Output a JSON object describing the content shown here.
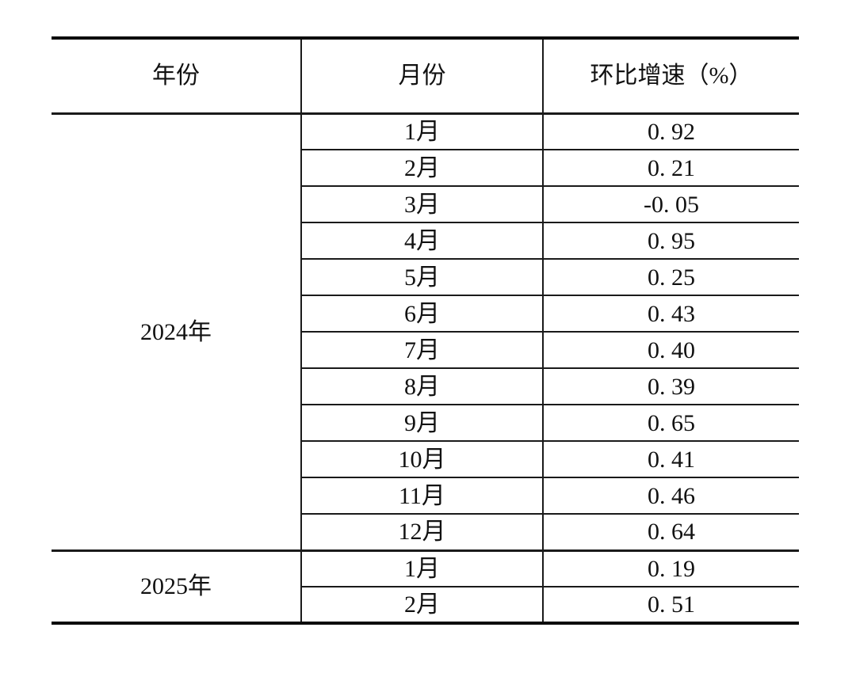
{
  "table": {
    "headers": {
      "year": "年份",
      "month": "月份",
      "rate": "环比增速（%）"
    },
    "groups": [
      {
        "year_label": "2024年",
        "rows": [
          {
            "month": "1月",
            "rate": "0. 92"
          },
          {
            "month": "2月",
            "rate": "0. 21"
          },
          {
            "month": "3月",
            "rate": "-0. 05"
          },
          {
            "month": "4月",
            "rate": "0. 95"
          },
          {
            "month": "5月",
            "rate": "0. 25"
          },
          {
            "month": "6月",
            "rate": "0. 43"
          },
          {
            "month": "7月",
            "rate": "0. 40"
          },
          {
            "month": "8月",
            "rate": "0. 39"
          },
          {
            "month": "9月",
            "rate": "0. 65"
          },
          {
            "month": "10月",
            "rate": "0. 41"
          },
          {
            "month": "11月",
            "rate": "0. 46"
          },
          {
            "month": "12月",
            "rate": "0. 64"
          }
        ]
      },
      {
        "year_label": "2025年",
        "rows": [
          {
            "month": "1月",
            "rate": "0. 19"
          },
          {
            "month": "2月",
            "rate": "0. 51"
          }
        ]
      }
    ]
  },
  "chart_data": {
    "type": "table",
    "columns": [
      "年份",
      "月份",
      "环比增速（%）"
    ],
    "rows": [
      [
        "2024年",
        "1月",
        0.92
      ],
      [
        "2024年",
        "2月",
        0.21
      ],
      [
        "2024年",
        "3月",
        -0.05
      ],
      [
        "2024年",
        "4月",
        0.95
      ],
      [
        "2024年",
        "5月",
        0.25
      ],
      [
        "2024年",
        "6月",
        0.43
      ],
      [
        "2024年",
        "7月",
        0.4
      ],
      [
        "2024年",
        "8月",
        0.39
      ],
      [
        "2024年",
        "9月",
        0.65
      ],
      [
        "2024年",
        "10月",
        0.41
      ],
      [
        "2024年",
        "11月",
        0.46
      ],
      [
        "2024年",
        "12月",
        0.64
      ],
      [
        "2025年",
        "1月",
        0.19
      ],
      [
        "2025年",
        "2月",
        0.51
      ]
    ]
  },
  "colors": {
    "background": "#ffffff",
    "border_heavy": "#0a0a0a",
    "border_light": "#1a1a1a",
    "text": "#111111"
  }
}
